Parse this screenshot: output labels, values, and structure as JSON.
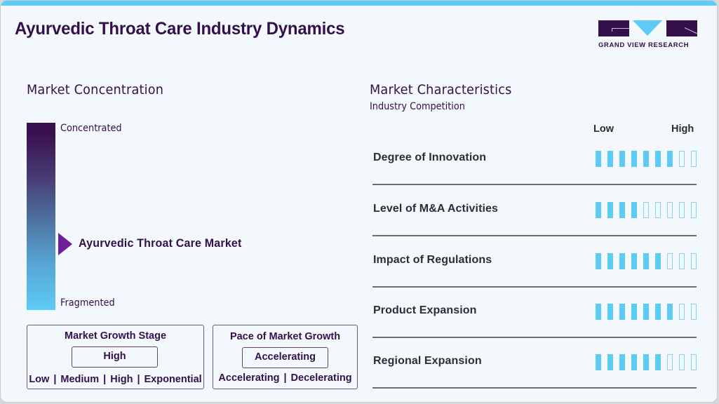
{
  "header": {
    "title": "Ayurvedic Throat Care Industry Dynamics",
    "logo_text": "GRAND VIEW RESEARCH"
  },
  "colors": {
    "primary_dark": "#34104a",
    "accent_cyan": "#5ecbf5",
    "pointer_purple": "#6f1f9b",
    "background": "#f3f8fc"
  },
  "concentration": {
    "heading": "Market Concentration",
    "top_label": "Concentrated",
    "bottom_label": "Fragmented",
    "marker_label": "Ayurvedic Throat Care Market",
    "marker_position_pct": 65
  },
  "growth_stage": {
    "title": "Market Growth Stage",
    "value": "High",
    "options": [
      "Low",
      "Medium",
      "High",
      "Exponential"
    ]
  },
  "growth_pace": {
    "title": "Pace of Market Growth",
    "value": "Accelerating",
    "options": [
      "Accelerating",
      "Decelerating"
    ]
  },
  "characteristics": {
    "heading": "Market Characteristics",
    "subheading": "Industry Competition",
    "scale_low": "Low",
    "scale_high": "High",
    "max_level": 9,
    "rows": [
      {
        "label": "Degree of Innovation",
        "level": 7
      },
      {
        "label": "Level of M&A Activities",
        "level": 4
      },
      {
        "label": "Impact of Regulations",
        "level": 6
      },
      {
        "label": "Product Expansion",
        "level": 7
      },
      {
        "label": "Regional Expansion",
        "level": 6
      }
    ]
  }
}
